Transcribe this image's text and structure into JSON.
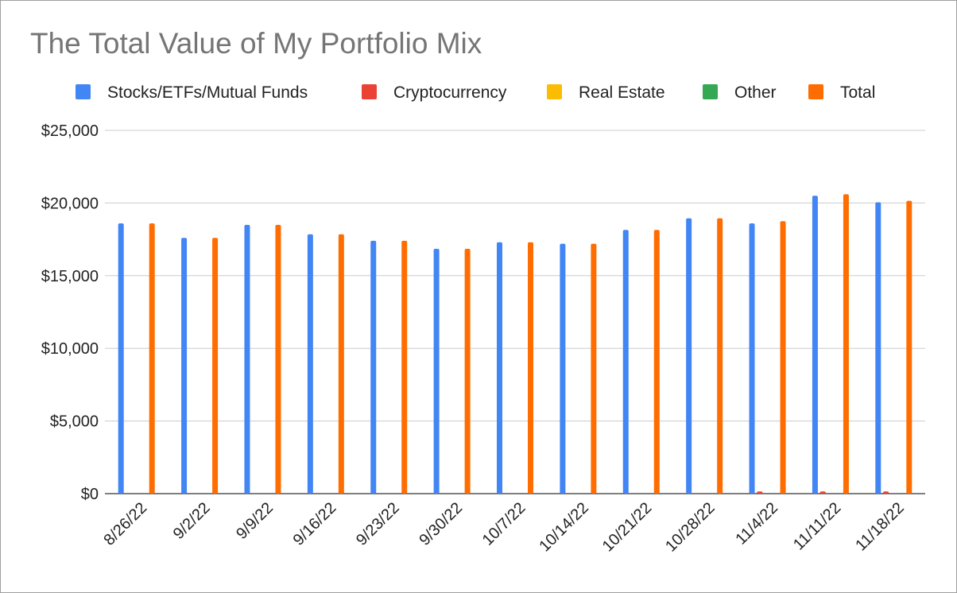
{
  "chart_data": {
    "type": "bar",
    "title": "The Total Value of My Portfolio Mix",
    "xlabel": "",
    "ylabel": "",
    "categories": [
      "8/26/22",
      "9/2/22",
      "9/9/22",
      "9/16/22",
      "9/23/22",
      "9/30/22",
      "10/7/22",
      "10/14/22",
      "10/21/22",
      "10/28/22",
      "11/4/22",
      "11/11/22",
      "11/18/22"
    ],
    "series": [
      {
        "name": "Stocks/ETFs/Mutual Funds",
        "color": "#4285f4",
        "values": [
          18600,
          17600,
          18500,
          17850,
          17400,
          16850,
          17300,
          17200,
          18150,
          18950,
          18600,
          20500,
          20050
        ]
      },
      {
        "name": "Cryptocurrency",
        "color": "#ea4335",
        "values": [
          0,
          0,
          0,
          0,
          0,
          0,
          0,
          0,
          0,
          0,
          150,
          150,
          150
        ]
      },
      {
        "name": "Real Estate",
        "color": "#fbbc04",
        "values": [
          0,
          0,
          0,
          0,
          0,
          0,
          0,
          0,
          0,
          0,
          0,
          0,
          0
        ]
      },
      {
        "name": "Other",
        "color": "#34a853",
        "values": [
          0,
          0,
          0,
          0,
          0,
          0,
          0,
          0,
          0,
          0,
          0,
          0,
          0
        ]
      },
      {
        "name": "Total",
        "color": "#ff6d01",
        "values": [
          18600,
          17600,
          18500,
          17850,
          17400,
          16850,
          17300,
          17200,
          18150,
          18950,
          18750,
          20600,
          20150
        ]
      }
    ],
    "ylim": [
      0,
      25000
    ],
    "yticks": [
      0,
      5000,
      10000,
      15000,
      20000,
      25000
    ],
    "ytick_labels": [
      "$0",
      "$5,000",
      "$10,000",
      "$15,000",
      "$20,000",
      "$25,000"
    ],
    "grid": true,
    "legend": "top"
  }
}
